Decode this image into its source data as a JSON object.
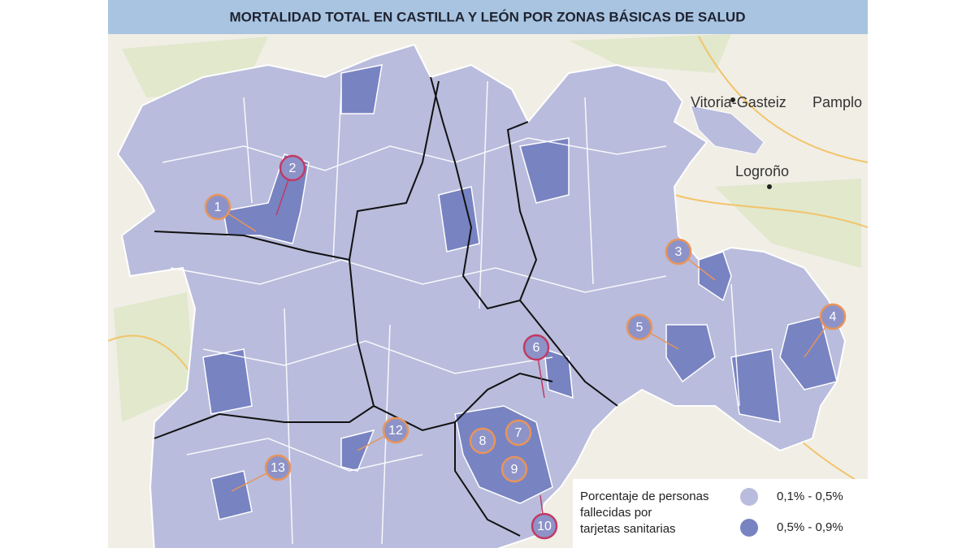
{
  "header": {
    "title": "MORTALIDAD TOTAL EN CASTILLA Y LEÓN POR ZONAS BÁSICAS DE SALUD"
  },
  "map": {
    "places": [
      {
        "label": "Vitoria-Gasteiz"
      },
      {
        "label": "Pamplo"
      },
      {
        "label": "Logroño"
      }
    ],
    "markers": [
      {
        "number": 1,
        "ring": "#e8945a"
      },
      {
        "number": 2,
        "ring": "#c23a63"
      },
      {
        "number": 3,
        "ring": "#e8945a"
      },
      {
        "number": 4,
        "ring": "#e8945a"
      },
      {
        "number": 5,
        "ring": "#e8945a"
      },
      {
        "number": 6,
        "ring": "#c23a63"
      },
      {
        "number": 7,
        "ring": "#e8945a"
      },
      {
        "number": 8,
        "ring": "#e8945a"
      },
      {
        "number": 9,
        "ring": "#e8945a"
      },
      {
        "number": 10,
        "ring": "#c23a63"
      },
      {
        "number": 12,
        "ring": "#e8945a"
      },
      {
        "number": 13,
        "ring": "#e8945a"
      }
    ]
  },
  "legend": {
    "title_lines": [
      "Porcentaje de personas",
      "fallecidas por",
      "tarjetas sanitarias"
    ],
    "items": [
      {
        "label": "0,1% - 0,5%",
        "color": "#b9bcdc"
      },
      {
        "label": "0,5% - 0,9%",
        "color": "#7883c2"
      }
    ]
  }
}
